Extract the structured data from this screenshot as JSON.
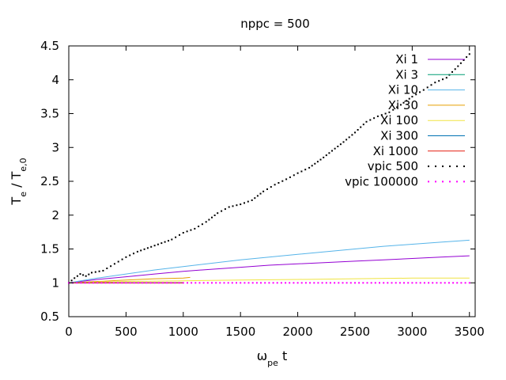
{
  "chart_data": {
    "type": "line",
    "title": "nppc = 500",
    "xlabel": {
      "main": "ω",
      "sub": "pe",
      "tail": " t"
    },
    "ylabel": {
      "parts": [
        {
          "t": "T",
          "sub": "e"
        },
        {
          "t": " / T",
          "sub": "e,0"
        }
      ]
    },
    "xlim": [
      0,
      3550
    ],
    "ylim": [
      0.5,
      4.5
    ],
    "xticks": [
      0,
      500,
      1000,
      1500,
      2000,
      2500,
      3000,
      3500
    ],
    "yticks": [
      0.5,
      1,
      1.5,
      2,
      2.5,
      3,
      3.5,
      4,
      4.5
    ],
    "ytick_labels": [
      "0.5",
      "1",
      "1.5",
      "2",
      "2.5",
      "3",
      "3.5",
      "4",
      "4.5"
    ],
    "grid": false,
    "legend_position": "top-right",
    "series": [
      {
        "name": "Xi 1",
        "color": "#9400d3",
        "style": "line",
        "x": [
          0,
          250,
          500,
          750,
          1000,
          1250,
          1500,
          1750,
          2000,
          2250,
          2500,
          2750,
          3000,
          3250,
          3500
        ],
        "y": [
          1.0,
          1.05,
          1.09,
          1.13,
          1.17,
          1.2,
          1.23,
          1.26,
          1.28,
          1.3,
          1.32,
          1.34,
          1.36,
          1.38,
          1.4
        ]
      },
      {
        "name": "Xi 3",
        "color": "#009e73",
        "style": "line",
        "x": [
          0,
          1000
        ],
        "y": [
          1.0,
          1.0
        ]
      },
      {
        "name": "Xi 10",
        "color": "#56b4e9",
        "style": "line",
        "x": [
          0,
          250,
          500,
          750,
          1000,
          1250,
          1500,
          1750,
          2000,
          2250,
          2500,
          2750,
          3000,
          3250,
          3500
        ],
        "y": [
          1.0,
          1.07,
          1.13,
          1.19,
          1.24,
          1.29,
          1.34,
          1.38,
          1.42,
          1.46,
          1.5,
          1.54,
          1.57,
          1.6,
          1.63
        ]
      },
      {
        "name": "Xi 30",
        "color": "#e69f00",
        "style": "line",
        "x": [
          0,
          250,
          500,
          750,
          1000,
          1060
        ],
        "y": [
          1.0,
          1.02,
          1.04,
          1.06,
          1.07,
          1.08
        ]
      },
      {
        "name": "Xi 100",
        "color": "#f0e442",
        "style": "line",
        "x": [
          0,
          500,
          1000,
          1500,
          2000,
          2500,
          3000,
          3500
        ],
        "y": [
          1.0,
          1.02,
          1.03,
          1.04,
          1.05,
          1.06,
          1.07,
          1.07
        ]
      },
      {
        "name": "Xi 300",
        "color": "#0072b2",
        "style": "line",
        "x": [
          0,
          1000
        ],
        "y": [
          1.0,
          1.0
        ]
      },
      {
        "name": "Xi 1000",
        "color": "#e51e10",
        "style": "line",
        "x": [
          0,
          1000
        ],
        "y": [
          1.0,
          1.0
        ]
      },
      {
        "name": "vpic 500",
        "color": "#000000",
        "style": "dots",
        "x": [
          0,
          50,
          100,
          150,
          200,
          300,
          400,
          500,
          600,
          750,
          900,
          1000,
          1100,
          1200,
          1300,
          1400,
          1500,
          1600,
          1700,
          1800,
          1900,
          2000,
          2100,
          2200,
          2300,
          2400,
          2500,
          2600,
          2700,
          2800,
          2900,
          3000,
          3100,
          3200,
          3300,
          3400,
          3500
        ],
        "y": [
          1.0,
          1.07,
          1.13,
          1.1,
          1.15,
          1.18,
          1.28,
          1.38,
          1.46,
          1.55,
          1.64,
          1.74,
          1.8,
          1.9,
          2.03,
          2.12,
          2.16,
          2.22,
          2.35,
          2.45,
          2.53,
          2.62,
          2.7,
          2.82,
          2.95,
          3.08,
          3.22,
          3.38,
          3.46,
          3.52,
          3.63,
          3.75,
          3.85,
          3.96,
          4.03,
          4.2,
          4.38
        ]
      },
      {
        "name": "vpic 100000",
        "color": "#ff00ff",
        "style": "dots",
        "x": [
          0,
          500,
          1000,
          1500,
          2000,
          2500,
          3000,
          3500
        ],
        "y": [
          1.0,
          1.0,
          1.0,
          1.0,
          1.0,
          1.0,
          1.0,
          1.0
        ]
      }
    ]
  }
}
